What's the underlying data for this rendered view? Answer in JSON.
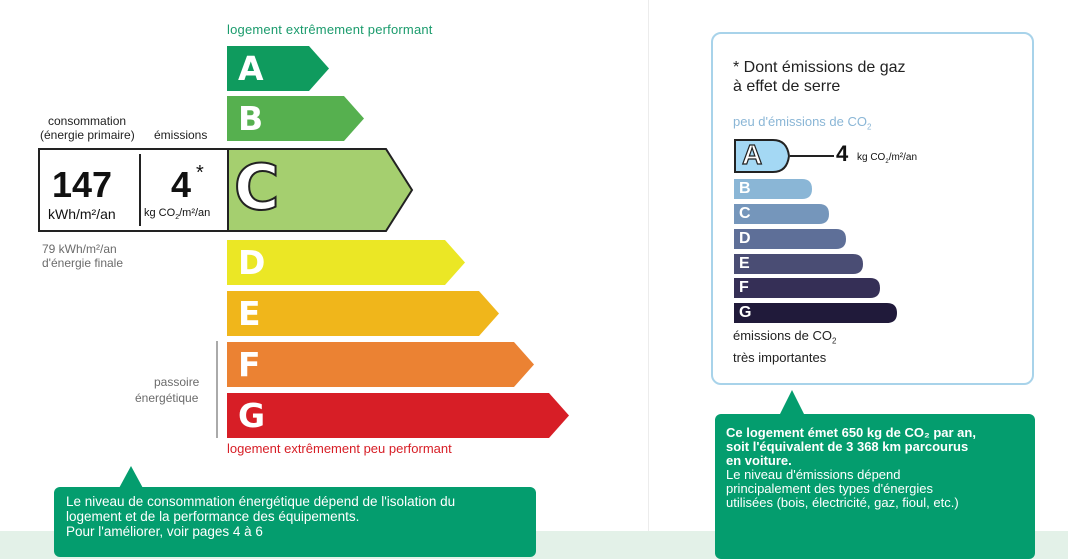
{
  "scale": {
    "top_label": "logement extrêmement performant",
    "bottom_label": "logement extrêmement peu performant",
    "current_class": "C",
    "classes": [
      {
        "letter": "A",
        "color": "#0f9b5e"
      },
      {
        "letter": "B",
        "color": "#56b04f"
      },
      {
        "letter": "C",
        "color": "#a5cf6f"
      },
      {
        "letter": "D",
        "color": "#ebe725"
      },
      {
        "letter": "E",
        "color": "#f0b61b"
      },
      {
        "letter": "F",
        "color": "#eb8233"
      },
      {
        "letter": "G",
        "color": "#d71e26"
      }
    ]
  },
  "consumption": {
    "label_line1": "consommation",
    "label_line2": "(énergie primaire)",
    "value": "147",
    "unit": "kWh/m²/an",
    "final_energy_line1": "79 kWh/m²/an",
    "final_energy_line2": "d'énergie finale"
  },
  "emissions": {
    "label": "émissions",
    "value": "4",
    "asterisk": "*",
    "unit_prefix": "kg CO",
    "unit_sub": "2",
    "unit_suffix": "/m²/an"
  },
  "passoire": {
    "line1": "passoire",
    "line2": "énergétique"
  },
  "left_callout": {
    "line1": "Le niveau de consommation énergétique dépend de l'isolation du",
    "line2": "logement et de la performance des équipements.",
    "line3": "Pour l'améliorer, voir pages 4 à 6"
  },
  "ges_box": {
    "title_line1": "* Dont émissions de gaz",
    "title_line2": "à effet de serre",
    "top_label_prefix": "peu d'émissions de CO",
    "top_label_sub": "2",
    "current_letter": "A",
    "current_value": "4",
    "unit_prefix": "kg CO",
    "unit_sub": "2",
    "unit_suffix": "/m²/an",
    "bottom_label_line1_prefix": "émissions de CO",
    "bottom_label_line1_sub": "2",
    "bottom_label_line2": "très importantes",
    "classes": [
      {
        "letter": "B",
        "color": "#8ab6d6"
      },
      {
        "letter": "C",
        "color": "#7596bb"
      },
      {
        "letter": "D",
        "color": "#5e6f98"
      },
      {
        "letter": "E",
        "color": "#4a4d74"
      },
      {
        "letter": "F",
        "color": "#352f56"
      },
      {
        "letter": "G",
        "color": "#201a3a"
      }
    ],
    "a_color": "#a4d8f4"
  },
  "right_callout": {
    "bold_line1": "Ce logement émet 650 kg de CO₂ par an,",
    "bold_line2": "soit l'équivalent de 3 368 km parcourus",
    "bold_line3": "en voiture.",
    "line4": "Le niveau d'émissions dépend",
    "line5": "principalement des types d'énergies",
    "line6": "utilisées (bois, électricité, gaz, fioul, etc.)"
  }
}
